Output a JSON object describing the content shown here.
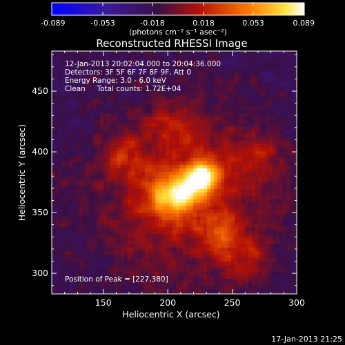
{
  "chart_data": {
    "type": "heatmap",
    "title": "Reconstructed RHESSI Image",
    "xlabel": "Heliocentric X (arcsec)",
    "ylabel": "Heliocentric Y (arcsec)",
    "xlim": [
      110,
      300
    ],
    "ylim": [
      283,
      483
    ],
    "x_ticks": [
      150,
      200,
      250,
      300
    ],
    "y_ticks": [
      300,
      350,
      400,
      450
    ],
    "colorbar": {
      "range": [
        -0.089,
        0.089
      ],
      "ticks": [
        -0.089,
        -0.053,
        -0.018,
        0.018,
        0.053,
        0.089
      ],
      "tick_labels": [
        "-0.089",
        "-0.053",
        "-0.018",
        "0.018",
        "0.053",
        "0.089"
      ],
      "unit_label": "(photons cm⁻² s⁻¹ asec⁻²)",
      "colormap": "blue-purple-red-yellow-white"
    },
    "annotations": {
      "time_range": "12-Jan-2013 20:02:04.000 to 20:04:36.000",
      "detectors": "Detectors: 3F 5F 6F 7F 8F 9F, Att 0",
      "energy_range": "Energy Range: 3.0 - 6.0 keV",
      "method_counts": "Clean     Total counts: 1.72E+04",
      "peak_position": "Position of Peak = [227,380]"
    },
    "peak": {
      "x": 227,
      "y": 380,
      "value": 0.089
    },
    "sources": [
      {
        "x": 227,
        "y": 380,
        "amplitude": 0.085,
        "sigma": 9
      },
      {
        "x": 200,
        "y": 362,
        "amplitude": 0.055,
        "sigma": 12
      },
      {
        "x": 215,
        "y": 368,
        "amplitude": 0.045,
        "sigma": 10
      },
      {
        "x": 165,
        "y": 397,
        "amplitude": 0.03,
        "sigma": 10
      },
      {
        "x": 240,
        "y": 330,
        "amplitude": 0.03,
        "sigma": 12
      },
      {
        "x": 270,
        "y": 395,
        "amplitude": 0.02,
        "sigma": 12
      },
      {
        "x": 205,
        "y": 420,
        "amplitude": 0.02,
        "sigma": 14
      },
      {
        "x": 260,
        "y": 310,
        "amplitude": 0.02,
        "sigma": 14
      }
    ],
    "background_level": -0.02,
    "footer_timestamp": "17-Jan-2013 21:25"
  }
}
